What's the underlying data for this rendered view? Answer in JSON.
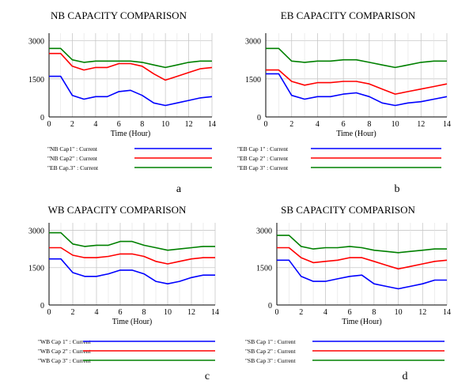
{
  "chart_data": [
    {
      "type": "line",
      "title": "NB CAPACITY COMPARISON",
      "xlabel": "Time (Hour)",
      "ylabel": "",
      "xlim": [
        0,
        14
      ],
      "ylim": [
        0,
        3300
      ],
      "x_ticks": [
        "0",
        "2",
        "4",
        "6",
        "8",
        "10",
        "12",
        "14"
      ],
      "y_ticks": [
        "0",
        "1500",
        "3000"
      ],
      "grid": true,
      "legend_placement": "below",
      "panel_letter": "a",
      "series": [
        {
          "name": "\"NB Cap1\" : Current",
          "color": "#0000ff",
          "x": [
            0,
            1,
            2,
            3,
            4,
            5,
            6,
            7,
            8,
            9,
            10,
            11,
            12,
            13,
            14
          ],
          "y": [
            1600,
            1600,
            850,
            700,
            800,
            800,
            1000,
            1050,
            850,
            550,
            450,
            550,
            650,
            750,
            800
          ]
        },
        {
          "name": "\"NB Cap2\" : Current",
          "color": "#ff0000",
          "x": [
            0,
            1,
            2,
            3,
            4,
            5,
            6,
            7,
            8,
            9,
            10,
            11,
            12,
            13,
            14
          ],
          "y": [
            2500,
            2500,
            2000,
            1850,
            1950,
            1950,
            2100,
            2100,
            2000,
            1700,
            1450,
            1600,
            1750,
            1900,
            1950
          ]
        },
        {
          "name": "\"EB Cap.3\" : Current",
          "color": "#008000",
          "x": [
            0,
            1,
            2,
            3,
            4,
            5,
            6,
            7,
            8,
            9,
            10,
            11,
            12,
            13,
            14
          ],
          "y": [
            2700,
            2700,
            2250,
            2150,
            2200,
            2200,
            2200,
            2200,
            2150,
            2050,
            1950,
            2050,
            2150,
            2200,
            2200
          ]
        }
      ]
    },
    {
      "type": "line",
      "title": "EB CAPACITY COMPARISON",
      "xlabel": "Time (Hour)",
      "ylabel": "",
      "xlim": [
        0,
        14
      ],
      "ylim": [
        0,
        3300
      ],
      "x_ticks": [
        "0",
        "2",
        "4",
        "6",
        "8",
        "10",
        "12",
        "14"
      ],
      "y_ticks": [
        "0",
        "1500",
        "3000"
      ],
      "grid": true,
      "legend_placement": "below",
      "panel_letter": "b",
      "series": [
        {
          "name": "\"EB Cap 1\" : Current",
          "color": "#0000ff",
          "x": [
            0,
            1,
            2,
            3,
            4,
            5,
            6,
            7,
            8,
            9,
            10,
            11,
            12,
            13,
            14
          ],
          "y": [
            1700,
            1700,
            850,
            700,
            800,
            800,
            900,
            950,
            800,
            550,
            450,
            550,
            600,
            700,
            800
          ]
        },
        {
          "name": "\"EB Cap 2\" : Current",
          "color": "#ff0000",
          "x": [
            0,
            1,
            2,
            3,
            4,
            5,
            6,
            7,
            8,
            9,
            10,
            11,
            12,
            13,
            14
          ],
          "y": [
            1850,
            1850,
            1400,
            1250,
            1350,
            1350,
            1400,
            1400,
            1300,
            1100,
            900,
            1000,
            1100,
            1200,
            1300
          ]
        },
        {
          "name": "\"EB Cap 3\" : Current",
          "color": "#008000",
          "x": [
            0,
            1,
            2,
            3,
            4,
            5,
            6,
            7,
            8,
            9,
            10,
            11,
            12,
            13,
            14
          ],
          "y": [
            2700,
            2700,
            2200,
            2150,
            2200,
            2200,
            2250,
            2250,
            2150,
            2050,
            1950,
            2050,
            2150,
            2200,
            2200
          ]
        }
      ]
    },
    {
      "type": "line",
      "title": "WB CAPACITY COMPARISON",
      "xlabel": "Time (Hour)",
      "ylabel": "",
      "xlim": [
        0,
        14
      ],
      "ylim": [
        0,
        3300
      ],
      "x_ticks": [
        "0",
        "2",
        "4",
        "6",
        "8",
        "10",
        "12",
        "14"
      ],
      "y_ticks": [
        "0",
        "1500",
        "3000"
      ],
      "grid": true,
      "legend_placement": "below",
      "panel_letter": "c",
      "series": [
        {
          "name": "\"WB Cap 1\" : Current",
          "color": "#0000ff",
          "x": [
            0,
            1,
            2,
            3,
            4,
            5,
            6,
            7,
            8,
            9,
            10,
            11,
            12,
            13,
            14
          ],
          "y": [
            1850,
            1850,
            1300,
            1150,
            1150,
            1250,
            1400,
            1400,
            1250,
            950,
            850,
            950,
            1100,
            1200,
            1200
          ]
        },
        {
          "name": "\"WB Cap 2\" : Current",
          "color": "#ff0000",
          "x": [
            0,
            1,
            2,
            3,
            4,
            5,
            6,
            7,
            8,
            9,
            10,
            11,
            12,
            13,
            14
          ],
          "y": [
            2300,
            2300,
            2000,
            1900,
            1900,
            1950,
            2050,
            2050,
            1950,
            1750,
            1650,
            1750,
            1850,
            1900,
            1900
          ]
        },
        {
          "name": "\"WB Cap 3\" : Current",
          "color": "#008000",
          "x": [
            0,
            1,
            2,
            3,
            4,
            5,
            6,
            7,
            8,
            9,
            10,
            11,
            12,
            13,
            14
          ],
          "y": [
            2900,
            2900,
            2450,
            2350,
            2400,
            2400,
            2550,
            2550,
            2400,
            2300,
            2200,
            2250,
            2300,
            2350,
            2350
          ]
        }
      ]
    },
    {
      "type": "line",
      "title": "SB CAPACITY COMPARISON",
      "xlabel": "Time (Hour)",
      "ylabel": "",
      "xlim": [
        0,
        14
      ],
      "ylim": [
        0,
        3300
      ],
      "x_ticks": [
        "0",
        "2",
        "4",
        "6",
        "8",
        "10",
        "12",
        "14"
      ],
      "y_ticks": [
        "0",
        "1500",
        "3000"
      ],
      "grid": true,
      "legend_placement": "below",
      "panel_letter": "d",
      "series": [
        {
          "name": "\"SB Cap 1\" : Current",
          "color": "#0000ff",
          "x": [
            0,
            1,
            2,
            3,
            4,
            5,
            6,
            7,
            8,
            9,
            10,
            11,
            12,
            13,
            14
          ],
          "y": [
            1800,
            1800,
            1150,
            950,
            950,
            1050,
            1150,
            1200,
            850,
            750,
            650,
            750,
            850,
            1000,
            1000
          ]
        },
        {
          "name": "\"SB Cap 2\" : Current",
          "color": "#ff0000",
          "x": [
            0,
            1,
            2,
            3,
            4,
            5,
            6,
            7,
            8,
            9,
            10,
            11,
            12,
            13,
            14
          ],
          "y": [
            2300,
            2300,
            1900,
            1700,
            1750,
            1800,
            1900,
            1900,
            1750,
            1600,
            1450,
            1550,
            1650,
            1750,
            1800
          ]
        },
        {
          "name": "\"SB Cap 3\" : Current",
          "color": "#008000",
          "x": [
            0,
            1,
            2,
            3,
            4,
            5,
            6,
            7,
            8,
            9,
            10,
            11,
            12,
            13,
            14
          ],
          "y": [
            2800,
            2800,
            2350,
            2250,
            2300,
            2300,
            2350,
            2300,
            2200,
            2150,
            2100,
            2150,
            2200,
            2250,
            2250
          ]
        }
      ]
    }
  ]
}
